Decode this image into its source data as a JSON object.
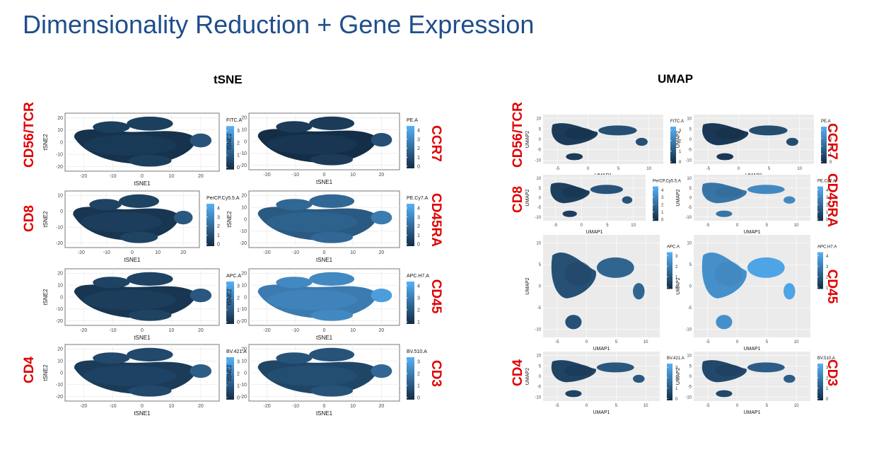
{
  "title": "Dimensionality Reduction + Gene Expression",
  "sections": {
    "tsne": "tSNE",
    "umap": "UMAP"
  },
  "markers": {
    "tsne_left": [
      "CD56/TCR",
      "CD8",
      "",
      "CD4"
    ],
    "tsne_right": [
      "CCR7",
      "CD45RA",
      "CD45",
      "CD3"
    ],
    "umap_left": [
      "CD56/TCR",
      "CD8",
      "",
      "CD4"
    ],
    "umap_right": [
      "CCR7",
      "CD45RA",
      "CD45",
      "CD3"
    ]
  },
  "colors": {
    "low": "#132b43",
    "high": "#56b1f7",
    "title": "#1f4e8c",
    "marker": "#e00000",
    "panel_bg_umap": "#ebebeb"
  },
  "chart_data": [
    {
      "type": "scatter",
      "embedding": "tSNE",
      "xlabel": "tSNE1",
      "ylabel": "tSNE2",
      "channel": "FITC.A",
      "legend_ticks": [
        "3",
        "2",
        "1",
        "0"
      ],
      "x_ticks": [
        "-20",
        "-10",
        "0",
        "10",
        "20"
      ],
      "y_ticks": [
        "20",
        "10",
        "0",
        "-10",
        "-20"
      ],
      "grid": true,
      "legend": "right"
    },
    {
      "type": "scatter",
      "embedding": "tSNE",
      "xlabel": "tSNE1",
      "ylabel": "tSNE2",
      "channel": "PE.A",
      "legend_ticks": [
        "4",
        "3",
        "2",
        "1",
        "0"
      ],
      "x_ticks": [
        "-20",
        "-10",
        "0",
        "10",
        "20"
      ],
      "y_ticks": [
        "20",
        "10",
        "0",
        "-10",
        "-20"
      ],
      "grid": true,
      "legend": "right"
    },
    {
      "type": "scatter",
      "embedding": "tSNE",
      "xlabel": "tSNE1",
      "ylabel": "tSNE2",
      "channel": "PerCP.Cy5.5.A",
      "legend_ticks": [
        "4",
        "3",
        "2",
        "1",
        "0"
      ],
      "x_ticks": [
        "-20",
        "-10",
        "0",
        "10",
        "20"
      ],
      "y_ticks": [
        "10",
        "0",
        "-10",
        "-20"
      ],
      "grid": true,
      "legend": "right"
    },
    {
      "type": "scatter",
      "embedding": "tSNE",
      "xlabel": "tSNE1",
      "ylabel": "tSNE2",
      "channel": "PE.Cy7.A",
      "legend_ticks": [
        "4",
        "3",
        "2",
        "1",
        "0"
      ],
      "x_ticks": [
        "-20",
        "-10",
        "0",
        "10",
        "20"
      ],
      "y_ticks": [
        "20",
        "10",
        "0",
        "-10",
        "-20"
      ],
      "grid": true,
      "legend": "right"
    },
    {
      "type": "scatter",
      "embedding": "tSNE",
      "xlabel": "tSNE1",
      "ylabel": "tSNE2",
      "channel": "APC.A",
      "legend_ticks": [
        "3",
        "2",
        "1",
        "0"
      ],
      "x_ticks": [
        "-20",
        "-10",
        "0",
        "10",
        "20"
      ],
      "y_ticks": [
        "20",
        "10",
        "0",
        "-10",
        "-20"
      ],
      "grid": true,
      "legend": "right"
    },
    {
      "type": "scatter",
      "embedding": "tSNE",
      "xlabel": "tSNE1",
      "ylabel": "tSNE2",
      "channel": "APC.H7.A",
      "legend_ticks": [
        "4",
        "3",
        "2",
        "1"
      ],
      "x_ticks": [
        "-20",
        "-10",
        "0",
        "10",
        "20"
      ],
      "y_ticks": [
        "20",
        "10",
        "0",
        "-10",
        "-20"
      ],
      "grid": true,
      "legend": "right"
    },
    {
      "type": "scatter",
      "embedding": "tSNE",
      "xlabel": "tSNE1",
      "ylabel": "tSNE2",
      "channel": "BV.421.A",
      "legend_ticks": [
        "3",
        "2",
        "1",
        "0"
      ],
      "x_ticks": [
        "-20",
        "-10",
        "0",
        "10",
        "20"
      ],
      "y_ticks": [
        "20",
        "10",
        "0",
        "-10",
        "-20"
      ],
      "grid": true,
      "legend": "right"
    },
    {
      "type": "scatter",
      "embedding": "tSNE",
      "xlabel": "tSNE1",
      "ylabel": "tSNE2",
      "channel": "BV.510.A",
      "legend_ticks": [
        "3",
        "2",
        "1",
        "0"
      ],
      "x_ticks": [
        "-20",
        "-10",
        "0",
        "10",
        "20"
      ],
      "y_ticks": [
        "20",
        "10",
        "0",
        "-10",
        "-20"
      ],
      "grid": true,
      "legend": "right"
    },
    {
      "type": "scatter",
      "embedding": "UMAP",
      "xlabel": "UMAP1",
      "ylabel": "UMAP2",
      "channel": "FITC.A",
      "legend_ticks": [
        "3",
        "2",
        "1",
        "0"
      ],
      "x_ticks": [
        "-5",
        "0",
        "5",
        "10"
      ],
      "y_ticks": [
        "10",
        "5",
        "0",
        "-5",
        "-10"
      ],
      "grid": true,
      "legend": "right"
    },
    {
      "type": "scatter",
      "embedding": "UMAP",
      "xlabel": "UMAP1",
      "ylabel": "UMAP2",
      "channel": "PE.A",
      "legend_ticks": [
        "4",
        "3",
        "2",
        "1",
        "0"
      ],
      "x_ticks": [
        "-5",
        "0",
        "5",
        "10"
      ],
      "y_ticks": [
        "10",
        "5",
        "0",
        "-5",
        "-10"
      ],
      "grid": true,
      "legend": "right"
    },
    {
      "type": "scatter",
      "embedding": "UMAP",
      "xlabel": "UMAP1",
      "ylabel": "UMAP2",
      "channel": "PerCP.Cy5.5.A",
      "legend_ticks": [
        "4",
        "3",
        "2",
        "1",
        "0"
      ],
      "x_ticks": [
        "-5",
        "0",
        "5",
        "10"
      ],
      "y_ticks": [
        "10",
        "5",
        "0",
        "-5",
        "-10"
      ],
      "grid": true,
      "legend": "right"
    },
    {
      "type": "scatter",
      "embedding": "UMAP",
      "xlabel": "UMAP1",
      "ylabel": "UMAP2",
      "channel": "PE.Cy7.A",
      "legend_ticks": [
        "4",
        "3",
        "2",
        "1",
        "0"
      ],
      "x_ticks": [
        "-5",
        "0",
        "5",
        "10"
      ],
      "y_ticks": [
        "10",
        "5",
        "0",
        "-5",
        "-10"
      ],
      "grid": true,
      "legend": "right"
    },
    {
      "type": "scatter",
      "embedding": "UMAP",
      "xlabel": "UMAP1",
      "ylabel": "UMAP2",
      "channel": "APC.A",
      "legend_ticks": [
        "3",
        "2",
        "1",
        "0"
      ],
      "x_ticks": [
        "-5",
        "0",
        "5",
        "10"
      ],
      "y_ticks": [
        "10",
        "5",
        "0",
        "-5",
        "-10"
      ],
      "grid": true,
      "legend": "right"
    },
    {
      "type": "scatter",
      "embedding": "UMAP",
      "xlabel": "UMAP1",
      "ylabel": "UMAP2",
      "channel": "APC.H7.A",
      "legend_ticks": [
        "4",
        "3",
        "2",
        "1"
      ],
      "x_ticks": [
        "-5",
        "0",
        "5",
        "10"
      ],
      "y_ticks": [
        "10",
        "5",
        "0",
        "-5",
        "-10"
      ],
      "grid": true,
      "legend": "right"
    },
    {
      "type": "scatter",
      "embedding": "UMAP",
      "xlabel": "UMAP1",
      "ylabel": "UMAP2",
      "channel": "BV.421.A",
      "legend_ticks": [
        "3",
        "2",
        "1",
        "0"
      ],
      "x_ticks": [
        "-5",
        "0",
        "5",
        "10"
      ],
      "y_ticks": [
        "10",
        "5",
        "0",
        "-5",
        "-10"
      ],
      "grid": true,
      "legend": "right"
    },
    {
      "type": "scatter",
      "embedding": "UMAP",
      "xlabel": "UMAP1",
      "ylabel": "UMAP2",
      "channel": "BV.510.A",
      "legend_ticks": [
        "3",
        "2",
        "1",
        "0"
      ],
      "x_ticks": [
        "-5",
        "0",
        "5",
        "10"
      ],
      "y_ticks": [
        "10",
        "5",
        "0",
        "-5",
        "-10"
      ],
      "grid": true,
      "legend": "right"
    }
  ]
}
